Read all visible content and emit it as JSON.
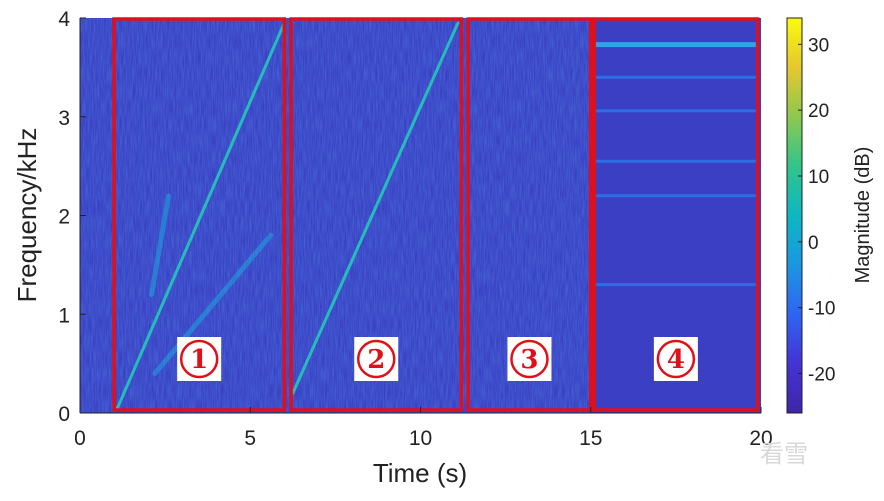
{
  "chart_data": {
    "type": "heatmap",
    "title": "",
    "xlabel": "Time (s)",
    "ylabel": "Frequency/kHz",
    "xlim": [
      0,
      20
    ],
    "ylim": [
      0,
      4
    ],
    "x_ticks": [
      "0",
      "5",
      "10",
      "15",
      "20"
    ],
    "y_ticks": [
      "0",
      "1",
      "2",
      "3",
      "4"
    ],
    "colorbar": {
      "label": "Magnitude (dB)",
      "range": [
        -26,
        34
      ],
      "ticks": [
        "30",
        "20",
        "10",
        "0",
        "-10",
        "-20"
      ],
      "colormap": [
        "#3e26a8",
        "#4433d6",
        "#2f64f2",
        "#1b97e3",
        "#0cb7c1",
        "#32c48a",
        "#8cc94f",
        "#e6c72e",
        "#f9fb0e"
      ]
    },
    "background_color": "#3a3fc4",
    "regions": [
      {
        "label": "①",
        "x_range": [
          1.0,
          6.0
        ]
      },
      {
        "label": "②",
        "x_range": [
          6.2,
          11.2
        ]
      },
      {
        "label": "③",
        "x_range": [
          11.4,
          15.0
        ]
      },
      {
        "label": "④",
        "x_range": [
          15.1,
          19.9
        ]
      }
    ],
    "region_color": "#e0101a",
    "sweeps": [
      {
        "x": [
          1.1,
          6.0
        ],
        "y": [
          0.05,
          3.95
        ]
      },
      {
        "x": [
          6.25,
          11.1
        ],
        "y": [
          0.2,
          3.95
        ]
      },
      {
        "x": [
          2.2,
          5.6
        ],
        "y": [
          0.4,
          1.8
        ]
      },
      {
        "x": [
          2.1,
          2.6
        ],
        "y": [
          1.2,
          2.2
        ]
      }
    ],
    "harmonic_lines_kHz": [
      3.73,
      3.4,
      3.06,
      2.55,
      2.2,
      1.3
    ]
  },
  "watermark": "看雪"
}
